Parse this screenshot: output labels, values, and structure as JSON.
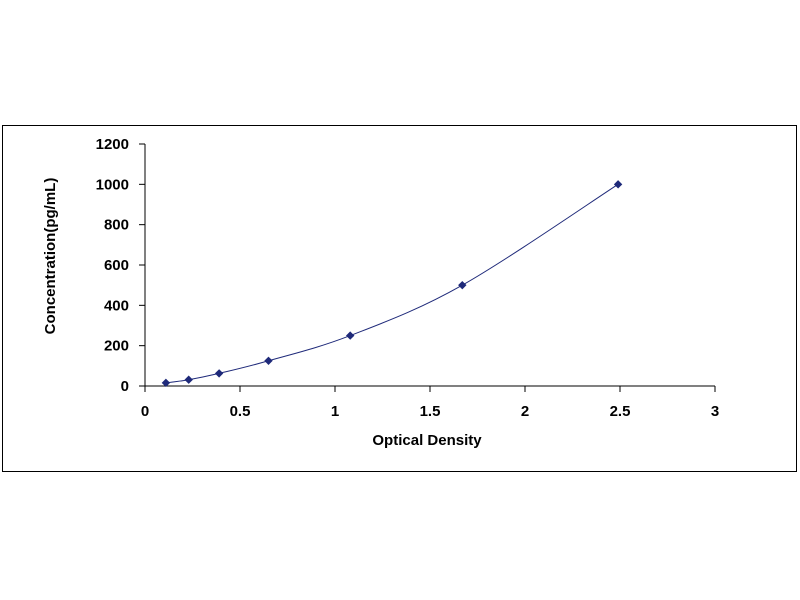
{
  "chart_data": {
    "type": "scatter",
    "title": "",
    "xlabel": "Optical Density",
    "ylabel": "Concentration(pg/mL)",
    "xlim": [
      0,
      3
    ],
    "ylim": [
      0,
      1200
    ],
    "x_ticks": [
      "0",
      "0.5",
      "1",
      "1.5",
      "2",
      "2.5",
      "3"
    ],
    "y_ticks": [
      "0",
      "200",
      "400",
      "600",
      "800",
      "1000",
      "1200"
    ],
    "grid": false,
    "legend": "none",
    "series": [
      {
        "x": [
          0.11,
          0.23,
          0.39,
          0.65,
          1.08,
          1.67,
          2.49
        ],
        "y": [
          15.6,
          31.2,
          62.5,
          125,
          250,
          500,
          1000
        ],
        "marker": "diamond",
        "trendline": "smooth-curve",
        "color": "#1f2a7a"
      }
    ]
  }
}
